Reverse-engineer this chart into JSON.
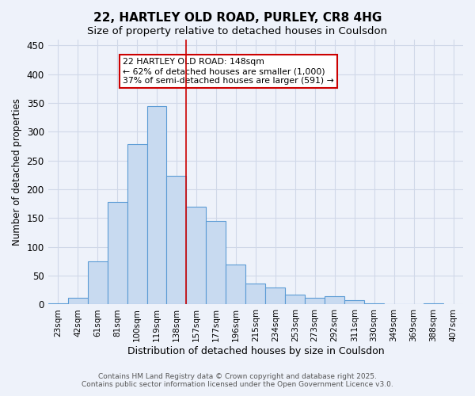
{
  "title": "22, HARTLEY OLD ROAD, PURLEY, CR8 4HG",
  "subtitle": "Size of property relative to detached houses in Coulsdon",
  "xlabel": "Distribution of detached houses by size in Coulsdon",
  "ylabel": "Number of detached properties",
  "footer_line1": "Contains HM Land Registry data © Crown copyright and database right 2025.",
  "footer_line2": "Contains public sector information licensed under the Open Government Licence v3.0.",
  "bin_labels": [
    "23sqm",
    "42sqm",
    "61sqm",
    "81sqm",
    "100sqm",
    "119sqm",
    "138sqm",
    "157sqm",
    "177sqm",
    "196sqm",
    "215sqm",
    "234sqm",
    "253sqm",
    "273sqm",
    "292sqm",
    "311sqm",
    "330sqm",
    "349sqm",
    "369sqm",
    "388sqm",
    "407sqm"
  ],
  "values": [
    2,
    11,
    75,
    178,
    278,
    345,
    223,
    170,
    145,
    70,
    37,
    30,
    17,
    11,
    15,
    7,
    2,
    1,
    1,
    2
  ],
  "bar_color": "#c8daf0",
  "bar_edge_color": "#5b9bd5",
  "grid_color": "#d0d8e8",
  "background_color": "#eef2fa",
  "annotation_box_text": "22 HARTLEY OLD ROAD: 148sqm\n← 62% of detached houses are smaller (1,000)\n37% of semi-detached houses are larger (591) →",
  "vline_x": 6.5,
  "vline_color": "#cc0000",
  "ylim": [
    0,
    460
  ],
  "yticks": [
    0,
    50,
    100,
    150,
    200,
    250,
    300,
    350,
    400,
    450
  ]
}
